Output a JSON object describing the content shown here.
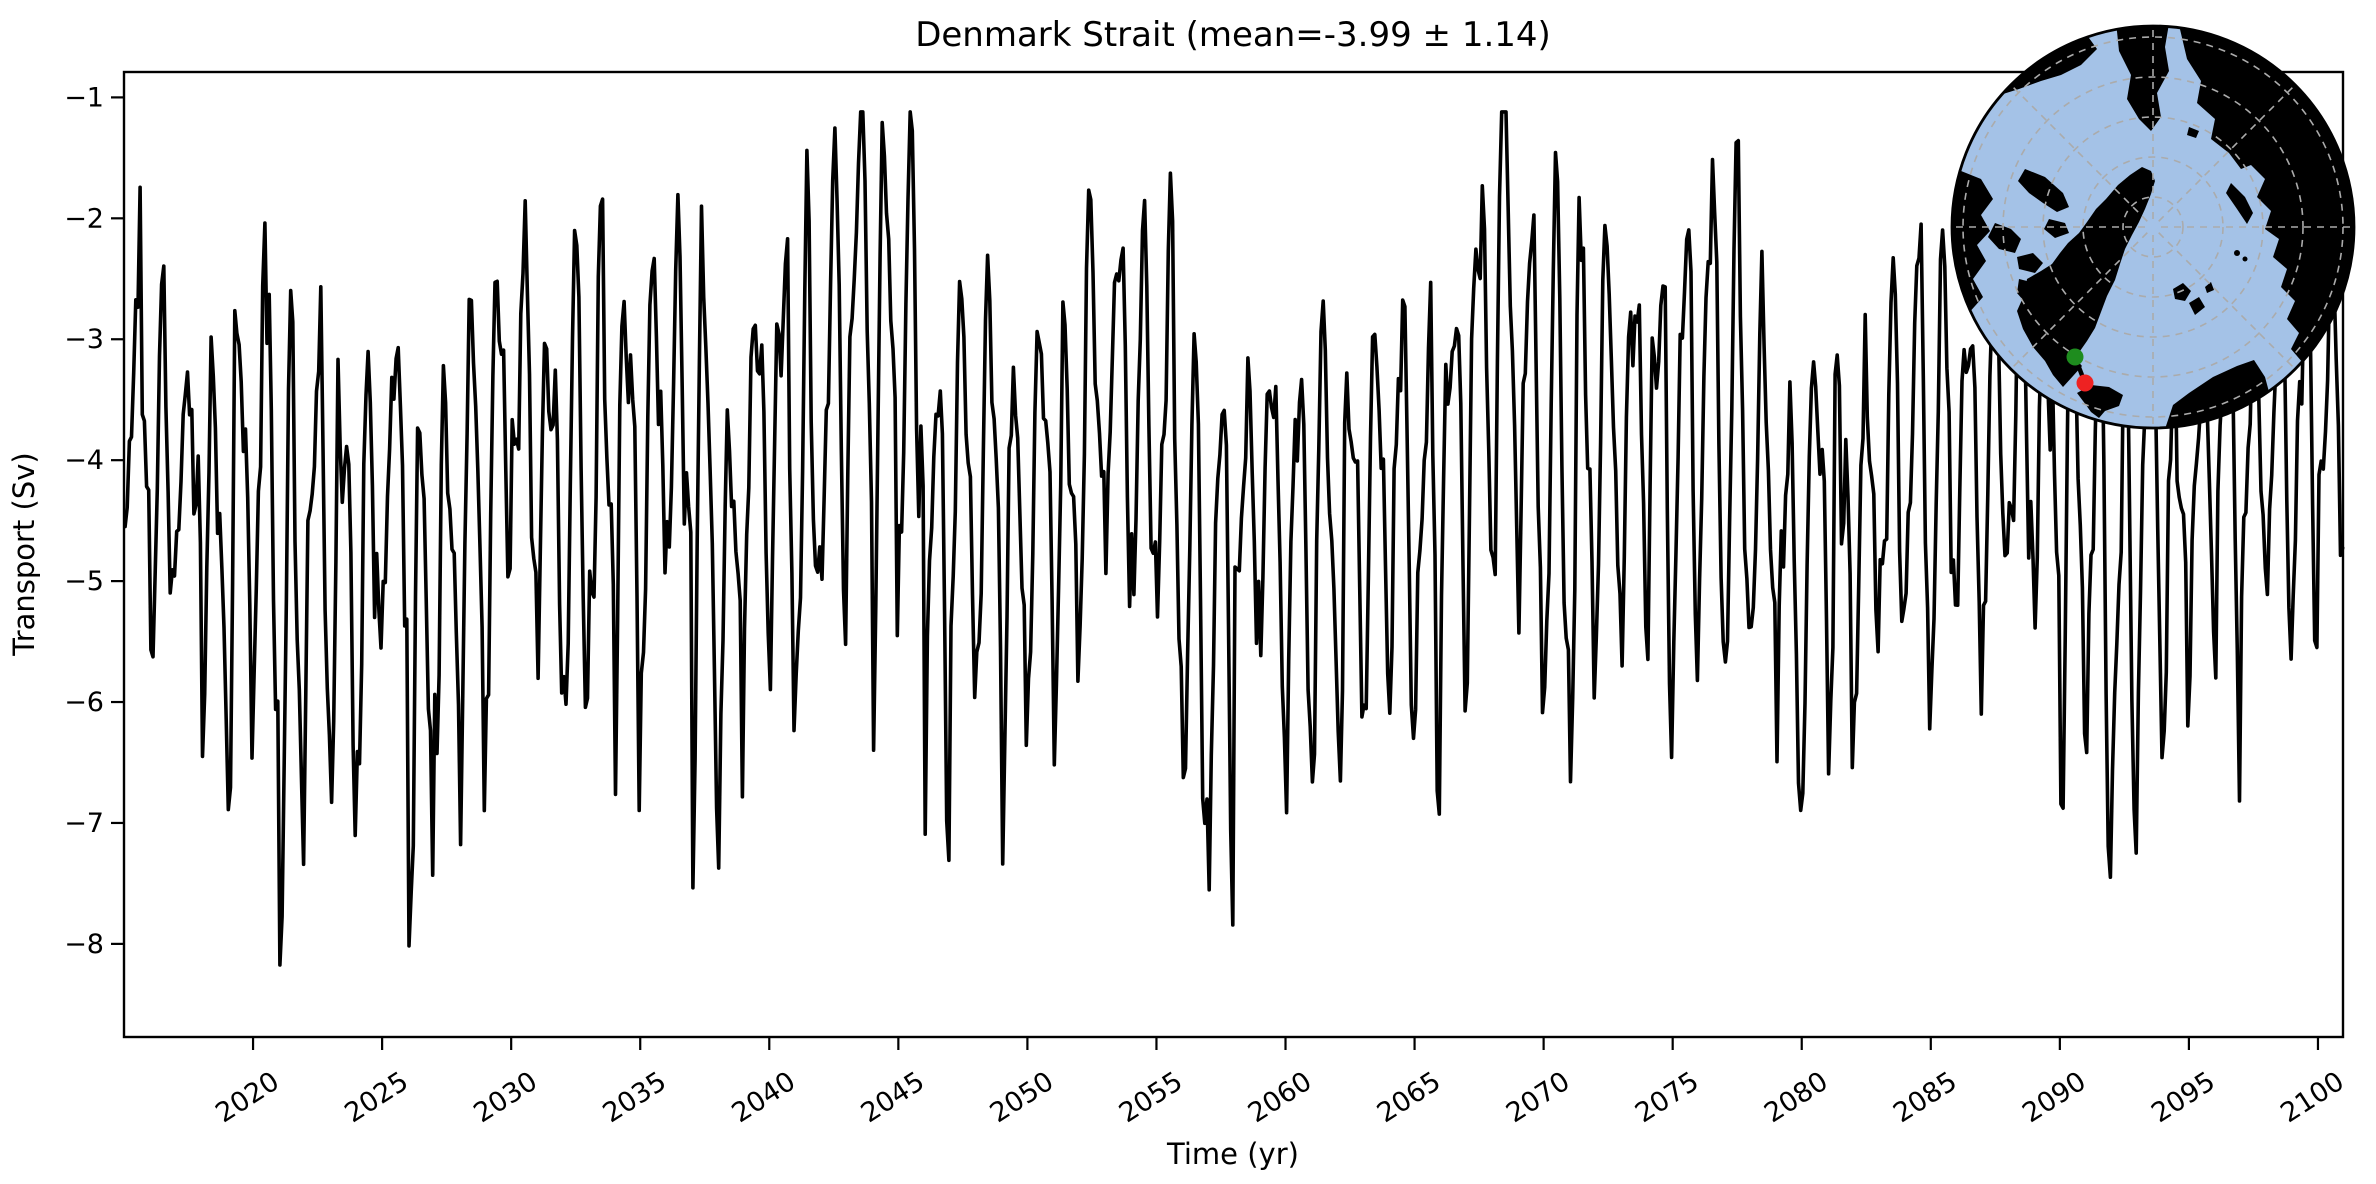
{
  "title": "Denmark Strait (mean=-3.99 ± 1.14)",
  "chart_data": {
    "type": "line",
    "title": "Denmark Strait (mean=-3.99 ± 1.14)",
    "xlabel": "Time (yr)",
    "ylabel": "Transport (Sv)",
    "xlim": [
      2015.0,
      2100.97
    ],
    "ylim": [
      -8.77,
      -0.79
    ],
    "x_ticks": [
      2020,
      2025,
      2030,
      2035,
      2040,
      2045,
      2050,
      2055,
      2060,
      2065,
      2070,
      2075,
      2080,
      2085,
      2090,
      2095,
      2100
    ],
    "x_tick_labels": [
      "2020",
      "2025",
      "2030",
      "2035",
      "2040",
      "2045",
      "2050",
      "2055",
      "2060",
      "2065",
      "2070",
      "2075",
      "2080",
      "2085",
      "2090",
      "2095",
      "2100"
    ],
    "y_ticks": [
      -1,
      -2,
      -3,
      -4,
      -5,
      -6,
      -7,
      -8
    ],
    "y_tick_labels": [
      "−1",
      "−2",
      "−3",
      "−4",
      "−5",
      "−6",
      "−7",
      "−8"
    ],
    "mean": -3.99,
    "std": 1.14,
    "series_min": -8.3,
    "series_max": -1.12,
    "sampling": "monthly",
    "start_year": 2015,
    "end_year": 2100,
    "line": {
      "color": "#000000",
      "width": 3.6
    },
    "grid": "off",
    "summer_max_by_year": [
      -2.7,
      -2.6,
      -3.3,
      -3.2,
      -2.6,
      -2.7,
      -3.4,
      -3.0,
      -3.8,
      -3.4,
      -3.2,
      -3.5,
      -3.6,
      -2.5,
      -2.6,
      -2.3,
      -3.0,
      -2.8,
      -2.4,
      -2.8,
      -2.7,
      -2.2,
      -2.5,
      -3.2,
      -2.9,
      -2.6,
      -2.5,
      -1.85,
      -1.3,
      -1.5,
      -1.6,
      -3.0,
      -2.9,
      -2.8,
      -3.3,
      -2.9,
      -3.1,
      -2.1,
      -2.3,
      -2.2,
      -2.2,
      -3.1,
      -3.4,
      -3.2,
      -2.9,
      -2.8,
      -2.4,
      -3.4,
      -3.1,
      -2.9,
      -3.0,
      -2.9,
      -1.85,
      -1.12,
      -2.0,
      -2.1,
      -2.3,
      -2.35,
      -2.3,
      -2.2,
      -2.1,
      -1.75,
      -1.8,
      -3.0,
      -3.4,
      -3.3,
      -3.2,
      -3.3,
      -2.9,
      -2.4,
      -2.5,
      -3.0,
      -2.7,
      -2.3,
      -2.4,
      -2.5,
      -3.1,
      -3.3,
      -2.7,
      -2.9,
      -3.0,
      -2.6,
      -2.6,
      -2.3,
      -2.4,
      -2.25
    ],
    "winter_min_by_year": [
      -4.6,
      -5.5,
      -4.9,
      -6.4,
      -6.6,
      -5.9,
      -8.3,
      -6.0,
      -6.7,
      -6.3,
      -5.4,
      -8.05,
      -6.0,
      -6.6,
      -5.6,
      -5.0,
      -5.7,
      -6.2,
      -5.4,
      -6.0,
      -5.6,
      -5.5,
      -7.0,
      -6.7,
      -5.0,
      -5.6,
      -5.9,
      -5.2,
      -4.2,
      -6.0,
      -5.3,
      -7.15,
      -5.7,
      -5.4,
      -6.9,
      -5.3,
      -6.35,
      -5.1,
      -4.9,
      -5.3,
      -5.9,
      -7.2,
      -7.55,
      -5.4,
      -6.0,
      -6.4,
      -6.8,
      -6.3,
      -6.3,
      -6.0,
      -6.65,
      -5.2,
      -4.9,
      -5.1,
      -5.5,
      -6.1,
      -6.1,
      -5.4,
      -5.6,
      -5.95,
      -5.3,
      -5.2,
      -5.7,
      -5.6,
      -6.85,
      -6.25,
      -6.6,
      -5.9,
      -5.5,
      -5.6,
      -5.8,
      -5.4,
      -5.3,
      -5.1,
      -5.0,
      -7.05,
      -6.9,
      -7.35,
      -5.95,
      -6.25,
      -5.6,
      -5.9,
      -5.2,
      -5.4,
      -5.5,
      -4.9
    ]
  },
  "inset_map": {
    "description": "North polar stereographic locator map with strait section markers over Denmark Strait",
    "colors": {
      "ocean": "#a4c2e7",
      "land": "#eeeedb",
      "graticule": "#ababab",
      "boundary": "#000000",
      "marker_start": "#1e8c1e",
      "marker_end": "#ee2222",
      "connector": "#000000"
    }
  }
}
